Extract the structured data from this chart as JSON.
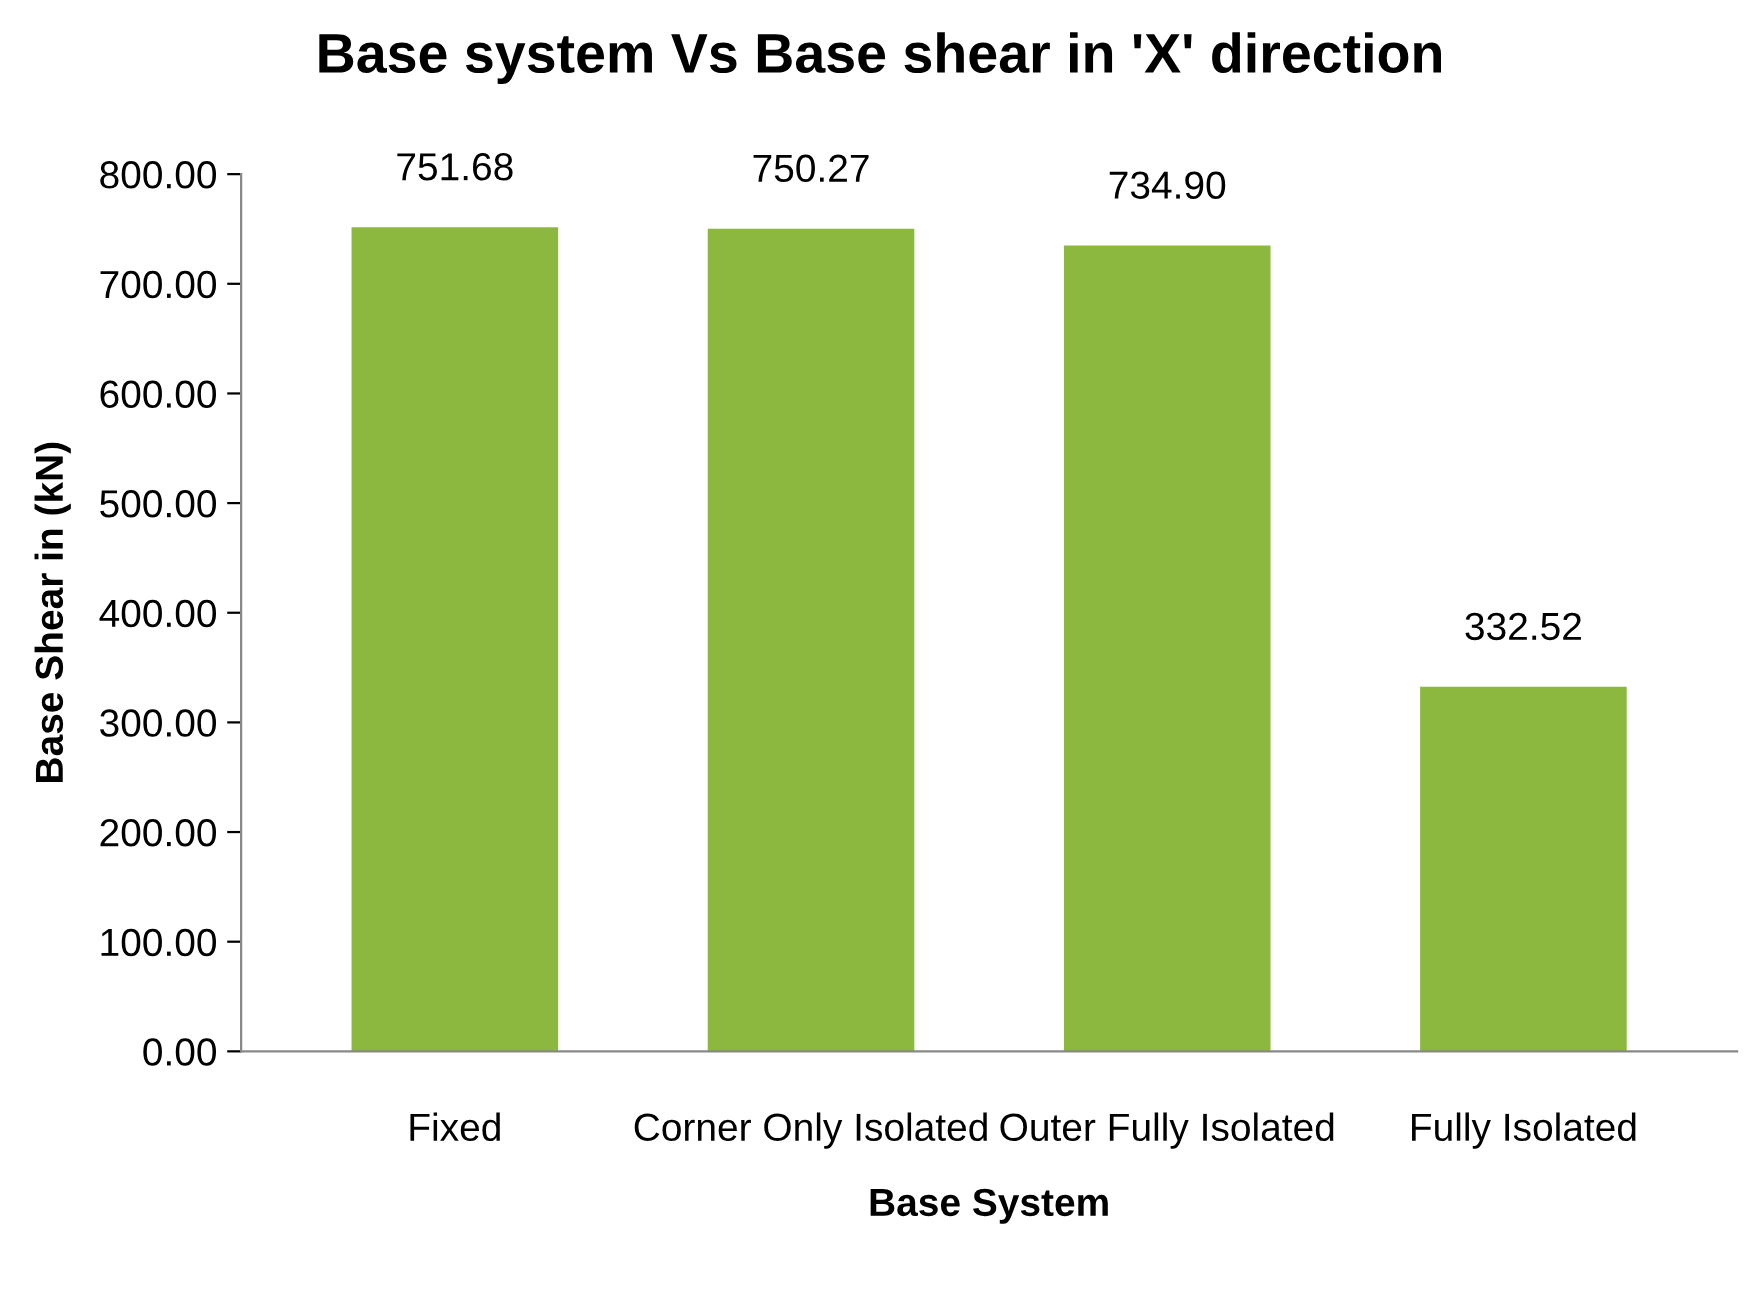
{
  "chart_data": {
    "type": "bar",
    "title": "Base system Vs Base shear in 'X' direction",
    "xlabel": "Base System",
    "ylabel": "Base Shear in (kN)",
    "categories": [
      "Fixed",
      "Corner Only Isolated",
      "Outer Fully Isolated",
      "Fully Isolated"
    ],
    "values": [
      751.68,
      750.27,
      734.9,
      332.52
    ],
    "value_labels": [
      "751.68",
      "750.27",
      "734.90",
      "332.52"
    ],
    "color": "#8db83f",
    "ylim": [
      0,
      800
    ],
    "yticks": [
      {
        "value": 0,
        "label": "0.00"
      },
      {
        "value": 100,
        "label": "100.00"
      },
      {
        "value": 200,
        "label": "200.00"
      },
      {
        "value": 300,
        "label": "300.00"
      },
      {
        "value": 400,
        "label": "400.00"
      },
      {
        "value": 500,
        "label": "500.00"
      },
      {
        "value": 600,
        "label": "600.00"
      },
      {
        "value": 700,
        "label": "700.00"
      },
      {
        "value": 800,
        "label": "800.00"
      }
    ],
    "grid": false,
    "legend": false
  }
}
